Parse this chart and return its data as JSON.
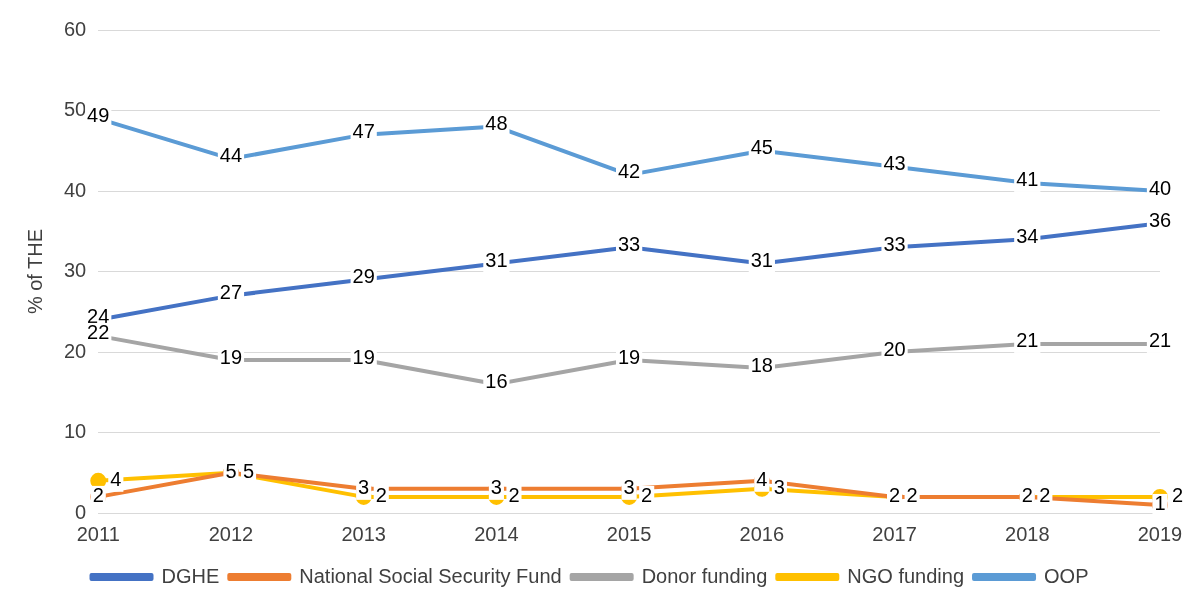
{
  "chart_data": {
    "type": "line",
    "ylabel": "% of THE",
    "categories": [
      "2011",
      "2012",
      "2013",
      "2014",
      "2015",
      "2016",
      "2017",
      "2018",
      "2019"
    ],
    "series": [
      {
        "name": "DGHE",
        "color": "#4472c4",
        "values": [
          24,
          27,
          29,
          31,
          33,
          31,
          33,
          34,
          36
        ]
      },
      {
        "name": "National Social Security Fund",
        "color": "#ed7d31",
        "values": [
          2,
          5,
          3,
          3,
          3,
          4,
          2,
          2,
          1
        ]
      },
      {
        "name": "Donor funding",
        "color": "#a5a5a5",
        "values": [
          22,
          19,
          19,
          16,
          19,
          18,
          20,
          21,
          21
        ]
      },
      {
        "name": "NGO funding",
        "color": "#ffc000",
        "values": [
          4,
          5,
          2,
          2,
          2,
          3,
          2,
          2,
          2
        ]
      },
      {
        "name": "OOP",
        "color": "#5b9bd5",
        "values": [
          49,
          44,
          47,
          48,
          42,
          45,
          43,
          41,
          40
        ]
      }
    ],
    "ylim": [
      0,
      60
    ],
    "yticks": [
      0,
      10,
      20,
      30,
      40,
      50,
      60
    ],
    "grid": "y",
    "legend": "bottom",
    "marker": "circle",
    "line_style": "solid",
    "data_labels": true
  }
}
